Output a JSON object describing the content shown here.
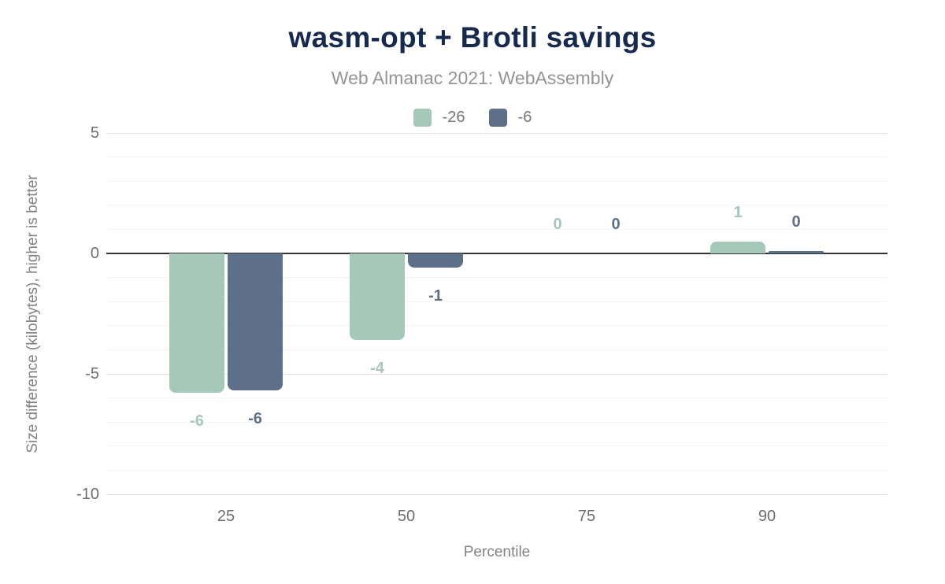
{
  "chart_data": {
    "type": "bar",
    "title": "wasm-opt + Brotli savings",
    "subtitle": "Web Almanac 2021: WebAssembly",
    "xlabel": "Percentile",
    "ylabel": "Size difference (kilobytes), higher is better",
    "categories": [
      "25",
      "50",
      "75",
      "90"
    ],
    "series": [
      {
        "name": "-26",
        "color": "#a6c8b8",
        "values": [
          -5.8,
          -3.6,
          0,
          0.5
        ],
        "data_labels": [
          "-6",
          "-4",
          "0",
          "1"
        ]
      },
      {
        "name": "-6",
        "color": "#5e7089",
        "values": [
          -5.7,
          -0.6,
          0,
          0.1
        ],
        "data_labels": [
          "-6",
          "-1",
          "0",
          "0"
        ]
      }
    ],
    "yticks": [
      5,
      0,
      -5,
      -10
    ],
    "ylim": [
      -10,
      5
    ],
    "grid": "horizontal lines every 1 unit, light gray",
    "legend_position": "top center",
    "zero_axis": "solid dark line at y=0"
  },
  "colors": {
    "title": "#16294e",
    "subtitle": "#949494",
    "tick_text": "#6e6e6e",
    "axis_title_text": "#828282",
    "legend_text": "#757575",
    "zero_line": "#333333",
    "gridline_major": "#e4e4e4",
    "gridline_minor": "#f4f4f4",
    "background": "#ffffff",
    "series_green": "#a6c8b8",
    "series_slate": "#5e7089"
  }
}
